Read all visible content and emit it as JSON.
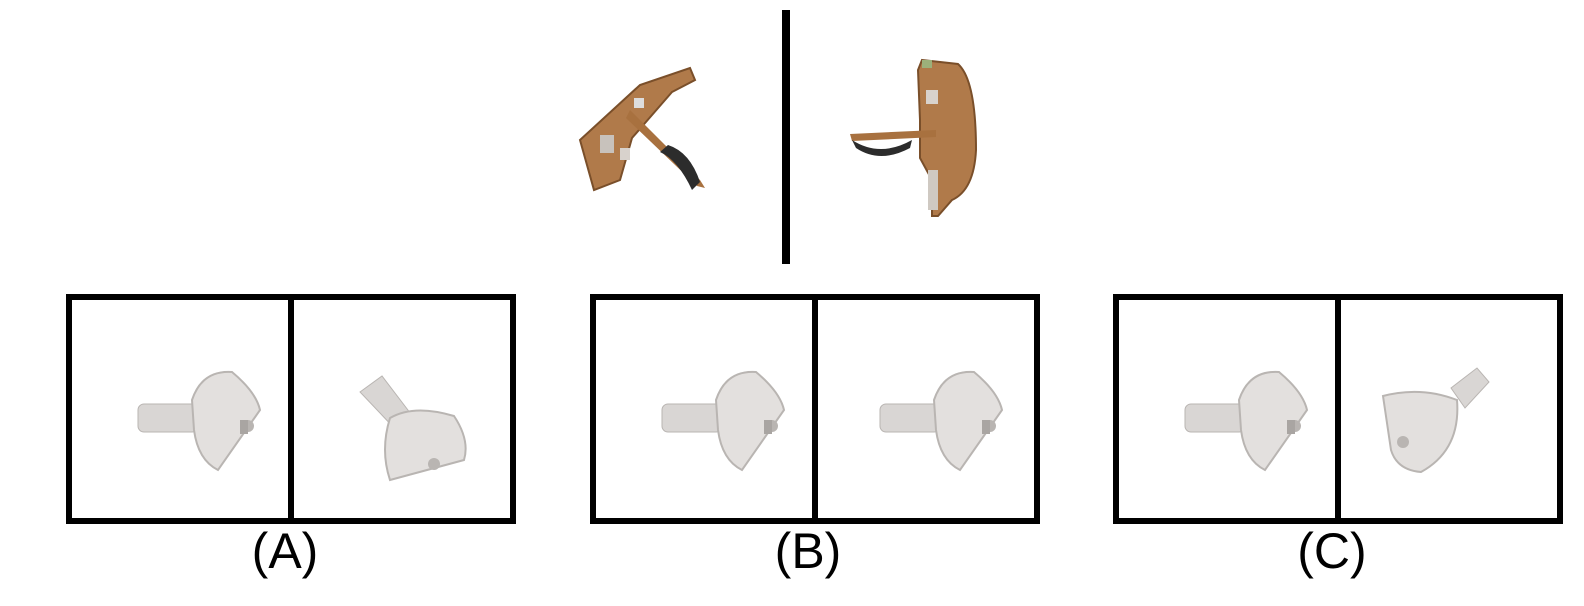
{
  "reference": {
    "left_view_icon": "ship-hull-tilted",
    "right_view_icon": "ship-hull-side",
    "hull_color": "#b07a4a",
    "dark_color": "#2c2c2c"
  },
  "options": [
    {
      "label": "(A)",
      "left_icon": "sink-view",
      "right_icon": "sink-view-tilted"
    },
    {
      "label": "(B)",
      "left_icon": "sink-view",
      "right_icon": "sink-view"
    },
    {
      "label": "(C)",
      "left_icon": "sink-view",
      "right_icon": "sink-view-rotated"
    }
  ],
  "colors": {
    "frame": "#000000",
    "sink": "#d9d6d4",
    "sink_shadow": "#b9b5b2"
  }
}
